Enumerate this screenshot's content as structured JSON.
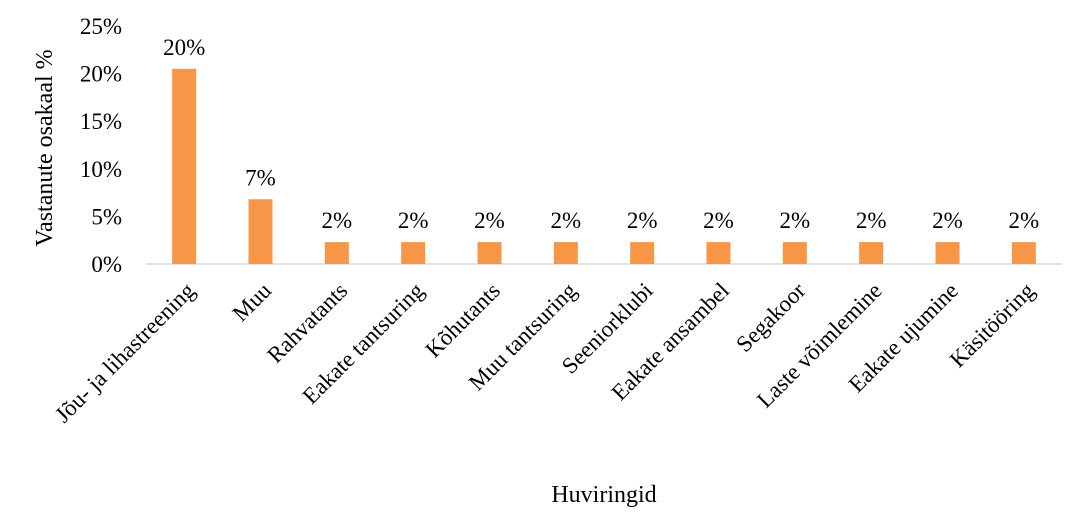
{
  "chart_data": {
    "type": "bar",
    "title": "",
    "xlabel": "Huviringid",
    "ylabel": "Vastanute osakaal %",
    "ylim": [
      0,
      25
    ],
    "yticks": [
      0,
      5,
      10,
      15,
      20,
      25
    ],
    "ytick_labels": [
      "0%",
      "5%",
      "10%",
      "15%",
      "20%",
      "25%"
    ],
    "categories": [
      "Jõu- ja lihastreening",
      "Muu",
      "Rahvatants",
      "Eakate tantsuring",
      "Kõhutants",
      "Muu tantsuring",
      "Seeniorklubi",
      "Eakate ansambel",
      "Segakoor",
      "Laste võimlemine",
      "Eakate ujumine",
      "Käsitööring"
    ],
    "values": [
      20.5,
      6.8,
      2.3,
      2.3,
      2.3,
      2.3,
      2.3,
      2.3,
      2.3,
      2.3,
      2.3,
      2.3
    ],
    "data_labels": [
      "20%",
      "7%",
      "2%",
      "2%",
      "2%",
      "2%",
      "2%",
      "2%",
      "2%",
      "2%",
      "2%",
      "2%"
    ],
    "grid": false,
    "legend": "none",
    "bar_color": "#F79646"
  }
}
